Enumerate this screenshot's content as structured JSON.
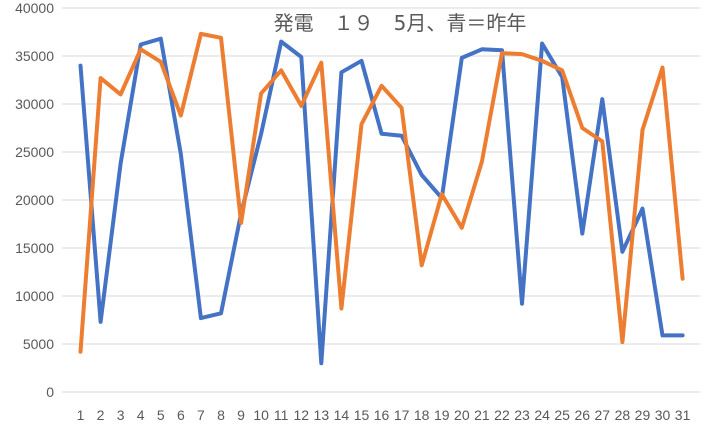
{
  "chart_data": {
    "type": "line",
    "title": "発電　１９　5月、青＝昨年",
    "xlabel": "",
    "ylabel": "",
    "categories": [
      "1",
      "2",
      "3",
      "4",
      "5",
      "6",
      "7",
      "8",
      "9",
      "10",
      "11",
      "12",
      "13",
      "14",
      "15",
      "16",
      "17",
      "18",
      "19",
      "20",
      "21",
      "22",
      "23",
      "24",
      "25",
      "26",
      "27",
      "28",
      "29",
      "30",
      "31"
    ],
    "ylim": [
      0,
      40000
    ],
    "yticks": [
      0,
      5000,
      10000,
      15000,
      20000,
      25000,
      30000,
      35000,
      40000
    ],
    "grid": true,
    "legend": "none",
    "series": [
      {
        "color": "#4472c4",
        "values": [
          34000,
          7300,
          23800,
          36200,
          36800,
          24800,
          7700,
          8200,
          18600,
          26900,
          36500,
          34900,
          3000,
          33300,
          34500,
          26900,
          26700,
          22600,
          20200,
          34800,
          35700,
          35600,
          9200,
          36300,
          32800,
          16500,
          30500,
          14600,
          19100,
          5900,
          5900
        ]
      },
      {
        "color": "#ed7d31",
        "values": [
          4200,
          32700,
          31000,
          35700,
          34400,
          28800,
          37300,
          36900,
          17600,
          31100,
          33500,
          29800,
          34300,
          8700,
          27900,
          31900,
          29600,
          13200,
          20600,
          17100,
          24000,
          35300,
          35200,
          34500,
          33500,
          27500,
          26100,
          5200,
          27300,
          33800,
          11800
        ]
      }
    ]
  }
}
